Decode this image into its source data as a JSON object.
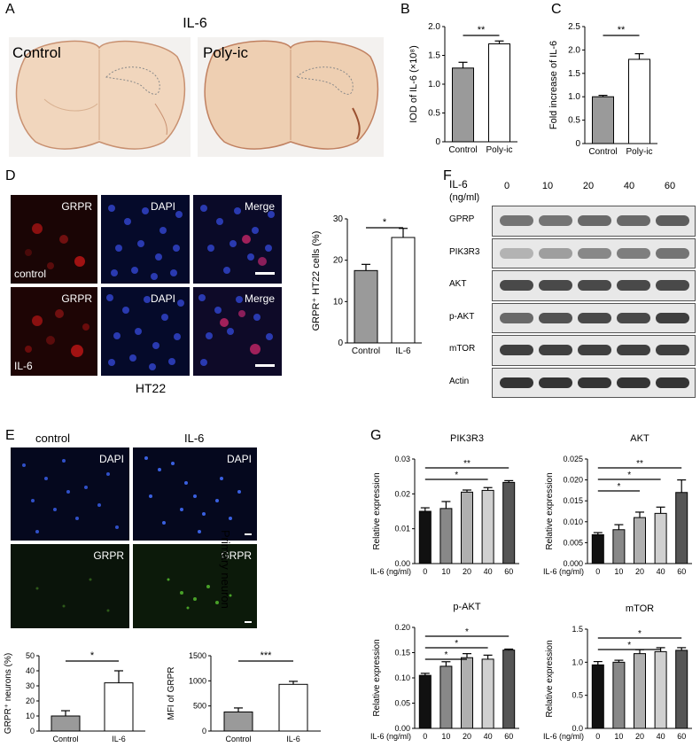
{
  "panels": {
    "A": "A",
    "B": "B",
    "C": "C",
    "D": "D",
    "E": "E",
    "F": "F",
    "G": "G"
  },
  "panelA": {
    "title": "IL-6",
    "left": "Control",
    "right": "Poly-ic"
  },
  "panelD": {
    "top_labels": [
      "GRPR",
      "DAPI",
      "Merge"
    ],
    "bottom_labels": [
      "GRPR",
      "DAPI",
      "Merge"
    ],
    "row1_tag": "control",
    "row2_tag": "IL-6",
    "caption": "HT22"
  },
  "panelE": {
    "col_labels": [
      "control",
      "IL-6"
    ],
    "dapi": "DAPI",
    "grpr": "GRPR",
    "side": "Primary neuron"
  },
  "panelF": {
    "dose_title": "IL-6",
    "dose_unit": "(ng/ml)",
    "doses": [
      "0",
      "10",
      "20",
      "40",
      "60"
    ],
    "rows": [
      "GPRP",
      "PIK3R3",
      "AKT",
      "p-AKT",
      "mTOR",
      "Actin"
    ]
  },
  "colors": {
    "gray_bar": "#9a9a9a",
    "black_bar": "#111111",
    "dapi_blue": "#1a2a8c",
    "grpr_red": "#8a1010",
    "grpr_green": "#1d3a10"
  },
  "chart_data": [
    {
      "id": "B",
      "type": "bar",
      "categories": [
        "Control",
        "Poly-ic"
      ],
      "values": [
        1.28,
        1.7
      ],
      "errors": [
        0.1,
        0.05
      ],
      "ylabel": "IOD of IL-6 (×10⁸)",
      "ylim": [
        0,
        2.0
      ],
      "yticks": [
        "0",
        "0.5",
        "1.0",
        "1.5",
        "2.0"
      ],
      "sig": "**",
      "fills": [
        "#9a9a9a",
        "#ffffff"
      ]
    },
    {
      "id": "C",
      "type": "bar",
      "categories": [
        "Control",
        "Poly-ic"
      ],
      "values": [
        1.0,
        1.8
      ],
      "errors": [
        0.03,
        0.12
      ],
      "ylabel": "Fold increase of IL-6",
      "ylim": [
        0,
        2.5
      ],
      "yticks": [
        "0",
        "0.5",
        "1.0",
        "1.5",
        "2.0",
        "2.5"
      ],
      "sig": "**",
      "fills": [
        "#9a9a9a",
        "#ffffff"
      ]
    },
    {
      "id": "D",
      "type": "bar",
      "categories": [
        "Control",
        "IL-6"
      ],
      "values": [
        17.5,
        25.5
      ],
      "errors": [
        1.5,
        2.2
      ],
      "ylabel": "GRPR⁺ HT22 cells (%)",
      "ylim": [
        0,
        30
      ],
      "yticks": [
        "0",
        "10",
        "20",
        "30"
      ],
      "sig": "*",
      "fills": [
        "#9a9a9a",
        "#ffffff"
      ]
    },
    {
      "id": "E1",
      "type": "bar",
      "categories": [
        "Control",
        "IL-6"
      ],
      "values": [
        10,
        32
      ],
      "errors": [
        3.5,
        8
      ],
      "ylabel": "GRPR⁺ neurons (%)",
      "ylim": [
        0,
        50
      ],
      "yticks": [
        "0",
        "10",
        "20",
        "30",
        "40",
        "50"
      ],
      "sig": "*",
      "fills": [
        "#9a9a9a",
        "#ffffff"
      ]
    },
    {
      "id": "E2",
      "type": "bar",
      "categories": [
        "Control",
        "IL-6"
      ],
      "values": [
        380,
        930
      ],
      "errors": [
        80,
        60
      ],
      "ylabel": "MFI of GRPR",
      "ylim": [
        0,
        1500
      ],
      "yticks": [
        "0",
        "500",
        "1000",
        "1500"
      ],
      "sig": "***",
      "fills": [
        "#9a9a9a",
        "#ffffff"
      ]
    },
    {
      "id": "G1",
      "type": "bar",
      "title": "PIK3R3",
      "categories": [
        "0",
        "10",
        "20",
        "40",
        "60"
      ],
      "values": [
        0.015,
        0.0158,
        0.0205,
        0.021,
        0.0233
      ],
      "errors": [
        0.001,
        0.002,
        0.0006,
        0.0008,
        0.0005
      ],
      "ylabel": "Relative expression",
      "xlabel": "IL-6 (ng/ml)",
      "ylim": [
        0,
        0.03
      ],
      "yticks": [
        "0.00",
        "0.01",
        "0.02",
        "0.03"
      ],
      "sigs": [
        {
          "to": 3,
          "label": "*"
        },
        {
          "to": 4,
          "label": "**"
        }
      ]
    },
    {
      "id": "G2",
      "type": "bar",
      "title": "AKT",
      "categories": [
        "0",
        "10",
        "20",
        "40",
        "60"
      ],
      "values": [
        0.0069,
        0.0081,
        0.011,
        0.012,
        0.017
      ],
      "errors": [
        0.0005,
        0.0012,
        0.0013,
        0.0015,
        0.003
      ],
      "ylabel": "Relative expression",
      "xlabel": "IL-6 (ng/ml)",
      "ylim": [
        0,
        0.025
      ],
      "yticks": [
        "0.000",
        "0.005",
        "0.010",
        "0.015",
        "0.020",
        "0.025"
      ],
      "sigs": [
        {
          "to": 2,
          "label": "*"
        },
        {
          "to": 3,
          "label": "*"
        },
        {
          "to": 4,
          "label": "**"
        }
      ]
    },
    {
      "id": "G3",
      "type": "bar",
      "title": "p-AKT",
      "categories": [
        "0",
        "10",
        "20",
        "40",
        "60"
      ],
      "values": [
        0.105,
        0.123,
        0.14,
        0.137,
        0.155
      ],
      "errors": [
        0.004,
        0.009,
        0.008,
        0.008,
        0.002
      ],
      "ylabel": "Relative expression",
      "xlabel": "IL-6 (ng/ml)",
      "ylim": [
        0,
        0.2
      ],
      "yticks": [
        "0.00",
        "0.05",
        "0.10",
        "0.15",
        "0.20"
      ],
      "sigs": [
        {
          "to": 2,
          "label": "*"
        },
        {
          "to": 3,
          "label": "*"
        },
        {
          "to": 4,
          "label": "*"
        }
      ]
    },
    {
      "id": "G4",
      "type": "bar",
      "title": "mTOR",
      "categories": [
        "0",
        "10",
        "20",
        "40",
        "60"
      ],
      "values": [
        0.96,
        1.0,
        1.13,
        1.16,
        1.18
      ],
      "errors": [
        0.05,
        0.03,
        0.06,
        0.06,
        0.04
      ],
      "ylabel": "Relative expression",
      "xlabel": "IL-6 (ng/ml)",
      "ylim": [
        0,
        1.5
      ],
      "yticks": [
        "0.0",
        "0.5",
        "1.0",
        "1.5"
      ],
      "sigs": [
        {
          "to": 3,
          "label": "*"
        },
        {
          "to": 4,
          "label": "*"
        }
      ]
    }
  ]
}
